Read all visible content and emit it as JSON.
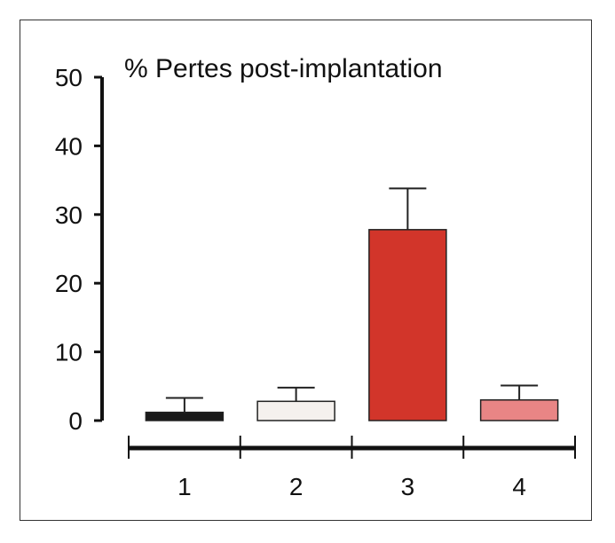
{
  "chart_data": {
    "type": "bar",
    "title": "% Pertes post-implantation",
    "xlabel": "",
    "ylabel": "",
    "categories": [
      "1",
      "2",
      "3",
      "4"
    ],
    "values": [
      1.2,
      2.8,
      27.8,
      3.0
    ],
    "error_upper": [
      3.3,
      4.8,
      33.8,
      5.1
    ],
    "ylim": [
      0,
      50
    ],
    "yticks": [
      "0",
      "10",
      "20",
      "30",
      "40",
      "50"
    ],
    "grid": false,
    "colors": [
      "#1a1a1a",
      "#f5f1ee",
      "#d2352a",
      "#e98585"
    ]
  }
}
